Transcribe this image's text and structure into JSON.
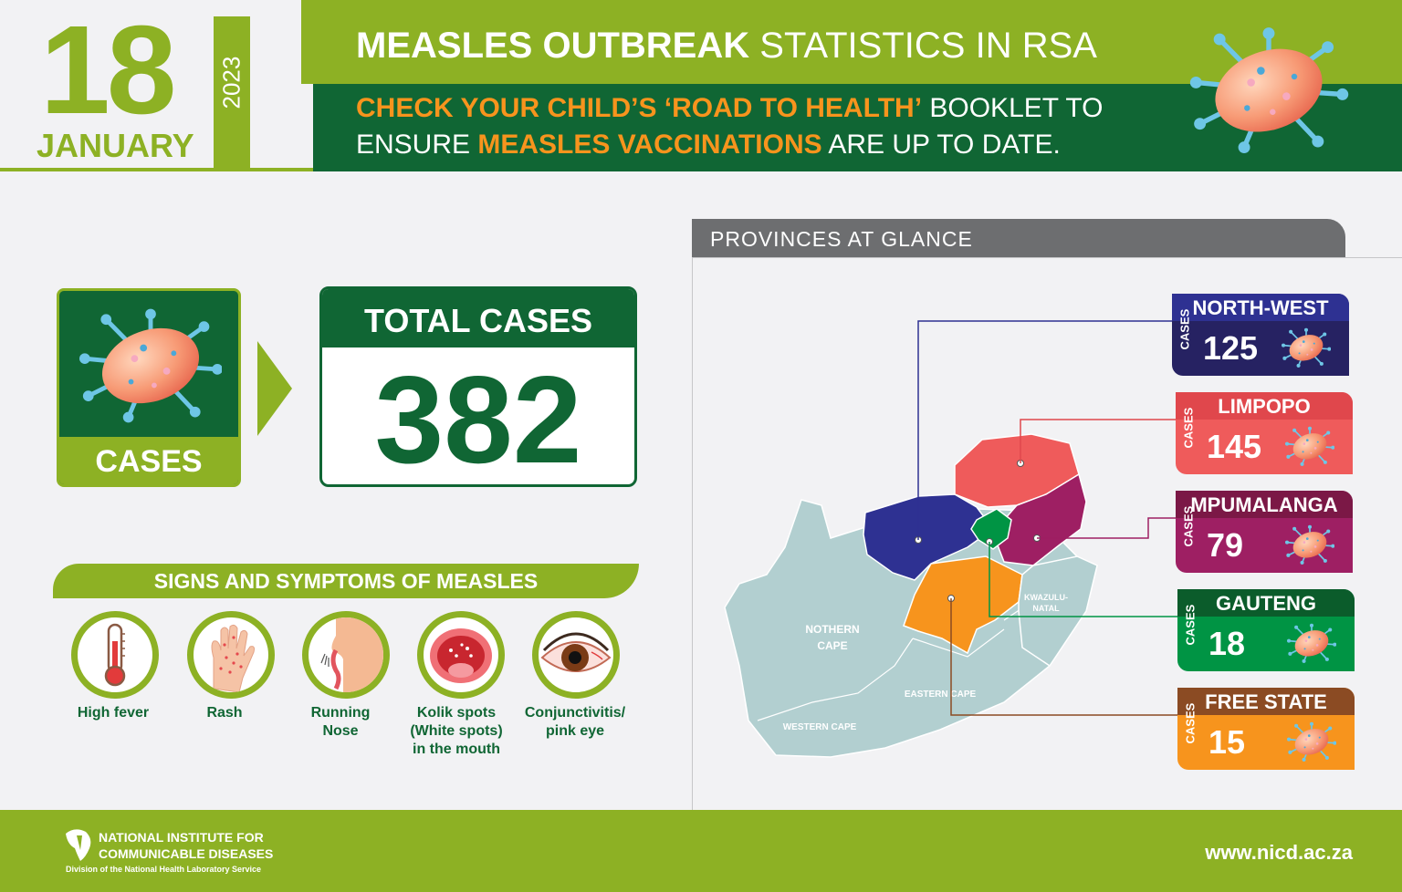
{
  "date": {
    "day": "18",
    "month": "JANUARY",
    "year": "2023"
  },
  "header": {
    "title_bold": "MEASLES OUTBREAK",
    "title_rest": "STATISTICS IN RSA",
    "line1_highlight": "CHECK YOUR CHILD’S ‘ROAD TO HEALTH’",
    "line1_rest": "BOOKLET TO",
    "line2_pre": "ENSURE",
    "line2_highlight": "MEASLES VACCINATIONS",
    "line2_rest": "ARE UP TO DATE."
  },
  "cases_card": {
    "label": "CASES",
    "icon": "measles-virus-icon"
  },
  "total": {
    "heading": "TOTAL CASES",
    "value": "382"
  },
  "symptoms": {
    "heading": "SIGNS AND SYMPTOMS OF MEASLES",
    "items": [
      {
        "icon": "thermometer-icon",
        "line1": "High fever",
        "line2": "",
        "line3": ""
      },
      {
        "icon": "rash-hand-icon",
        "line1": "Rash",
        "line2": "",
        "line3": ""
      },
      {
        "icon": "running-nose-icon",
        "line1": "Running",
        "line2": "Nose",
        "line3": ""
      },
      {
        "icon": "open-mouth-icon",
        "line1": "Kolik spots",
        "line2": "(White spots)",
        "line3": "in the mouth"
      },
      {
        "icon": "red-eye-icon",
        "line1": "Conjunctivitis/",
        "line2": "pink eye",
        "line3": ""
      }
    ]
  },
  "provinces": {
    "heading": "PROVINCES AT GLANCE",
    "cases_tag": "CASES",
    "map_labels": {
      "northern_cape_1": "NOTHERN",
      "northern_cape_2": "CAPE",
      "western_cape": "WESTERN CAPE",
      "eastern_cape": "EASTERN CAPE",
      "kzn_1": "KWAZULU-",
      "kzn_2": "NATAL"
    },
    "items": [
      {
        "name": "NORTH-WEST",
        "cases": "125",
        "head_color": "#2e3192",
        "body_color": "#262262"
      },
      {
        "name": "LIMPOPO",
        "cases": "145",
        "head_color": "#e0474c",
        "body_color": "#ef5b5b"
      },
      {
        "name": "MPUMALANGA",
        "cases": "79",
        "head_color": "#7b1846",
        "body_color": "#9e1f63"
      },
      {
        "name": "GAUTENG",
        "cases": "18",
        "head_color": "#0b5c2b",
        "body_color": "#009444"
      },
      {
        "name": "FREE STATE",
        "cases": "15",
        "head_color": "#8b4b23",
        "body_color": "#f7941d"
      }
    ]
  },
  "footer": {
    "org_line1": "NATIONAL INSTITUTE FOR",
    "org_line2": "COMMUNICABLE DISEASES",
    "org_line3": "Division of the National Health Laboratory Service",
    "url": "www.nicd.ac.za"
  },
  "colors": {
    "brand_green": "#8db124",
    "dark_green": "#106634",
    "highlight_orange": "#f7941d",
    "grey": "#6d6e70"
  }
}
